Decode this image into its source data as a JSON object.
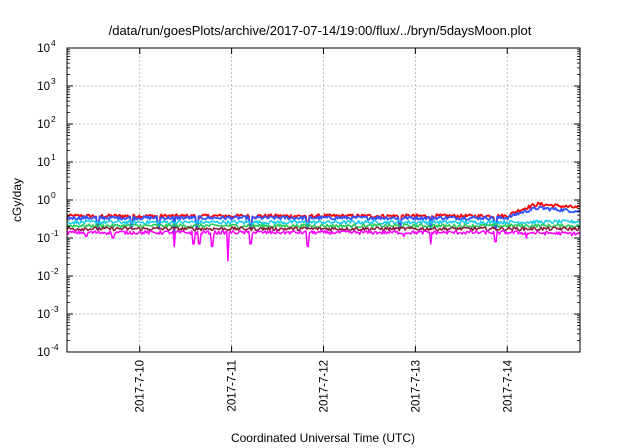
{
  "chart_data": {
    "type": "line",
    "title": "/data/run/goesPlots/archive/2017-07-14/19:00/flux/../bryn/5daysMoon.plot",
    "xlabel": "Coordinated Universal Time (UTC)",
    "ylabel": "cGy/day",
    "yscale": "log",
    "ylim": [
      0.0001,
      10000
    ],
    "y_ticks": [
      {
        "base": "10",
        "exp": "-4",
        "value": 0.0001
      },
      {
        "base": "10",
        "exp": "-3",
        "value": 0.001
      },
      {
        "base": "10",
        "exp": "-2",
        "value": 0.01
      },
      {
        "base": "10",
        "exp": "-1",
        "value": 0.1
      },
      {
        "base": "10",
        "exp": "0",
        "value": 1
      },
      {
        "base": "10",
        "exp": "1",
        "value": 10
      },
      {
        "base": "10",
        "exp": "2",
        "value": 100
      },
      {
        "base": "10",
        "exp": "3",
        "value": 1000
      },
      {
        "base": "10",
        "exp": "4",
        "value": 10000
      }
    ],
    "xlim": [
      "2017-07-09 05:00",
      "2017-07-14 19:00"
    ],
    "x_ticks": [
      {
        "label": "2017-7-10",
        "date": "2017-07-10"
      },
      {
        "label": "2017-7-11",
        "date": "2017-07-11"
      },
      {
        "label": "2017-7-12",
        "date": "2017-07-12"
      },
      {
        "label": "2017-7-13",
        "date": "2017-07-13"
      },
      {
        "label": "2017-7-14",
        "date": "2017-07-14"
      }
    ],
    "grid": true,
    "legend": "none",
    "series": [
      {
        "color": "#ff0000",
        "baseline": 0.38,
        "late": [
          {
            "date": "2017-07-14",
            "value": 0.38
          },
          {
            "date": "2017-07-14 08:00",
            "value": 0.78
          },
          {
            "date": "2017-07-14 19:00",
            "value": 0.62
          }
        ],
        "dips": [
          {
            "date": "2017-07-09 13:00",
            "value": 0.2
          },
          {
            "date": "2017-07-09 22:00",
            "value": 0.22
          },
          {
            "date": "2017-07-10 05:00",
            "value": 0.2
          },
          {
            "date": "2017-07-10 09:00",
            "value": 0.15
          },
          {
            "date": "2017-07-10 15:00",
            "value": 0.2
          },
          {
            "date": "2017-07-11 05:00",
            "value": 0.2
          },
          {
            "date": "2017-07-11 20:00",
            "value": 0.2
          },
          {
            "date": "2017-07-12 20:00",
            "value": 0.2
          },
          {
            "date": "2017-07-13 04:00",
            "value": 0.2
          },
          {
            "date": "2017-07-13 21:00",
            "value": 0.2
          }
        ]
      },
      {
        "color": "#3355ff",
        "baseline": 0.34,
        "late": [
          {
            "date": "2017-07-14",
            "value": 0.34
          },
          {
            "date": "2017-07-14 08:00",
            "value": 0.62
          },
          {
            "date": "2017-07-14 19:00",
            "value": 0.5
          }
        ],
        "dips": [
          {
            "date": "2017-07-09 13:00",
            "value": 0.18
          },
          {
            "date": "2017-07-09 22:00",
            "value": 0.2
          },
          {
            "date": "2017-07-10 05:00",
            "value": 0.18
          },
          {
            "date": "2017-07-10 09:00",
            "value": 0.13
          },
          {
            "date": "2017-07-10 15:00",
            "value": 0.18
          },
          {
            "date": "2017-07-11 05:00",
            "value": 0.18
          },
          {
            "date": "2017-07-11 20:00",
            "value": 0.18
          },
          {
            "date": "2017-07-12 20:00",
            "value": 0.18
          },
          {
            "date": "2017-07-13 04:00",
            "value": 0.18
          },
          {
            "date": "2017-07-13 21:00",
            "value": 0.18
          }
        ]
      },
      {
        "color": "#11ccee",
        "baseline": 0.26,
        "late": [
          {
            "date": "2017-07-14",
            "value": 0.26
          },
          {
            "date": "2017-07-14 19:00",
            "value": 0.27
          }
        ],
        "dips": []
      },
      {
        "color": "#22cc55",
        "baseline": 0.21,
        "late": [
          {
            "date": "2017-07-14",
            "value": 0.21
          },
          {
            "date": "2017-07-14 19:00",
            "value": 0.21
          }
        ],
        "dips": []
      },
      {
        "color": "#8b1a3a",
        "baseline": 0.175,
        "late": [
          {
            "date": "2017-07-14",
            "value": 0.175
          },
          {
            "date": "2017-07-14 19:00",
            "value": 0.175
          }
        ],
        "dips": []
      },
      {
        "color": "#ff00ff",
        "baseline": 0.14,
        "late": [
          {
            "date": "2017-07-14",
            "value": 0.14
          },
          {
            "date": "2017-07-14 19:00",
            "value": 0.13
          }
        ],
        "dips": [
          {
            "date": "2017-07-09 10:00",
            "value": 0.11
          },
          {
            "date": "2017-07-09 17:00",
            "value": 0.1
          },
          {
            "date": "2017-07-10 09:00",
            "value": 0.06
          },
          {
            "date": "2017-07-10 14:00",
            "value": 0.07
          },
          {
            "date": "2017-07-10 15:30",
            "value": 0.07
          },
          {
            "date": "2017-07-10 19:00",
            "value": 0.06
          },
          {
            "date": "2017-07-10 23:00",
            "value": 0.025
          },
          {
            "date": "2017-07-11 05:00",
            "value": 0.07
          },
          {
            "date": "2017-07-11 20:00",
            "value": 0.06
          },
          {
            "date": "2017-07-12 21:00",
            "value": 0.11
          },
          {
            "date": "2017-07-13 04:00",
            "value": 0.07
          },
          {
            "date": "2017-07-13 21:00",
            "value": 0.08
          },
          {
            "date": "2017-07-14 05:00",
            "value": 0.1
          }
        ]
      }
    ]
  }
}
